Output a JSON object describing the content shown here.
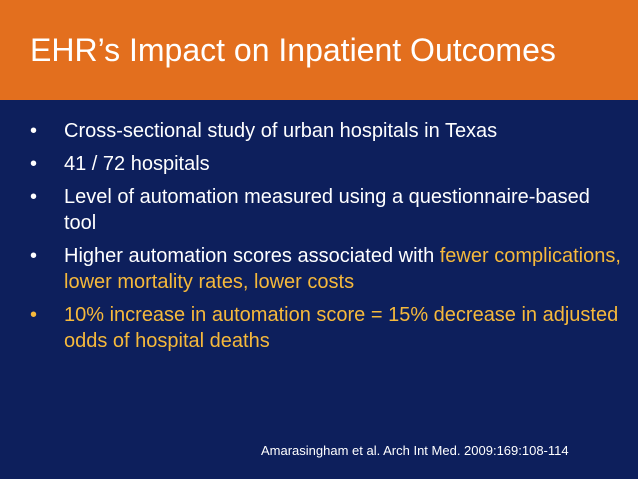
{
  "slide": {
    "title": "EHR’s Impact on Inpatient Outcomes",
    "bullet_glyph": "•",
    "bullets": [
      {
        "text": "Cross-sectional study of urban hospitals in Texas"
      },
      {
        "text": "41 / 72 hospitals"
      },
      {
        "text": "Level of automation measured using a questionnaire-based tool"
      },
      {
        "text_before": "Higher automation scores associated with ",
        "text_highlight": "fewer complications, lower mortality rates, lower costs"
      },
      {
        "text": "10% increase in automation score = 15% decrease in adjusted odds of hospital deaths"
      }
    ],
    "citation": "Amarasingham et al. Arch Int Med. 2009:169:108-114"
  },
  "colors": {
    "title_bar": "#e36f1e",
    "background": "#0d1f5c",
    "highlight": "#f6b93b",
    "text": "#ffffff"
  }
}
